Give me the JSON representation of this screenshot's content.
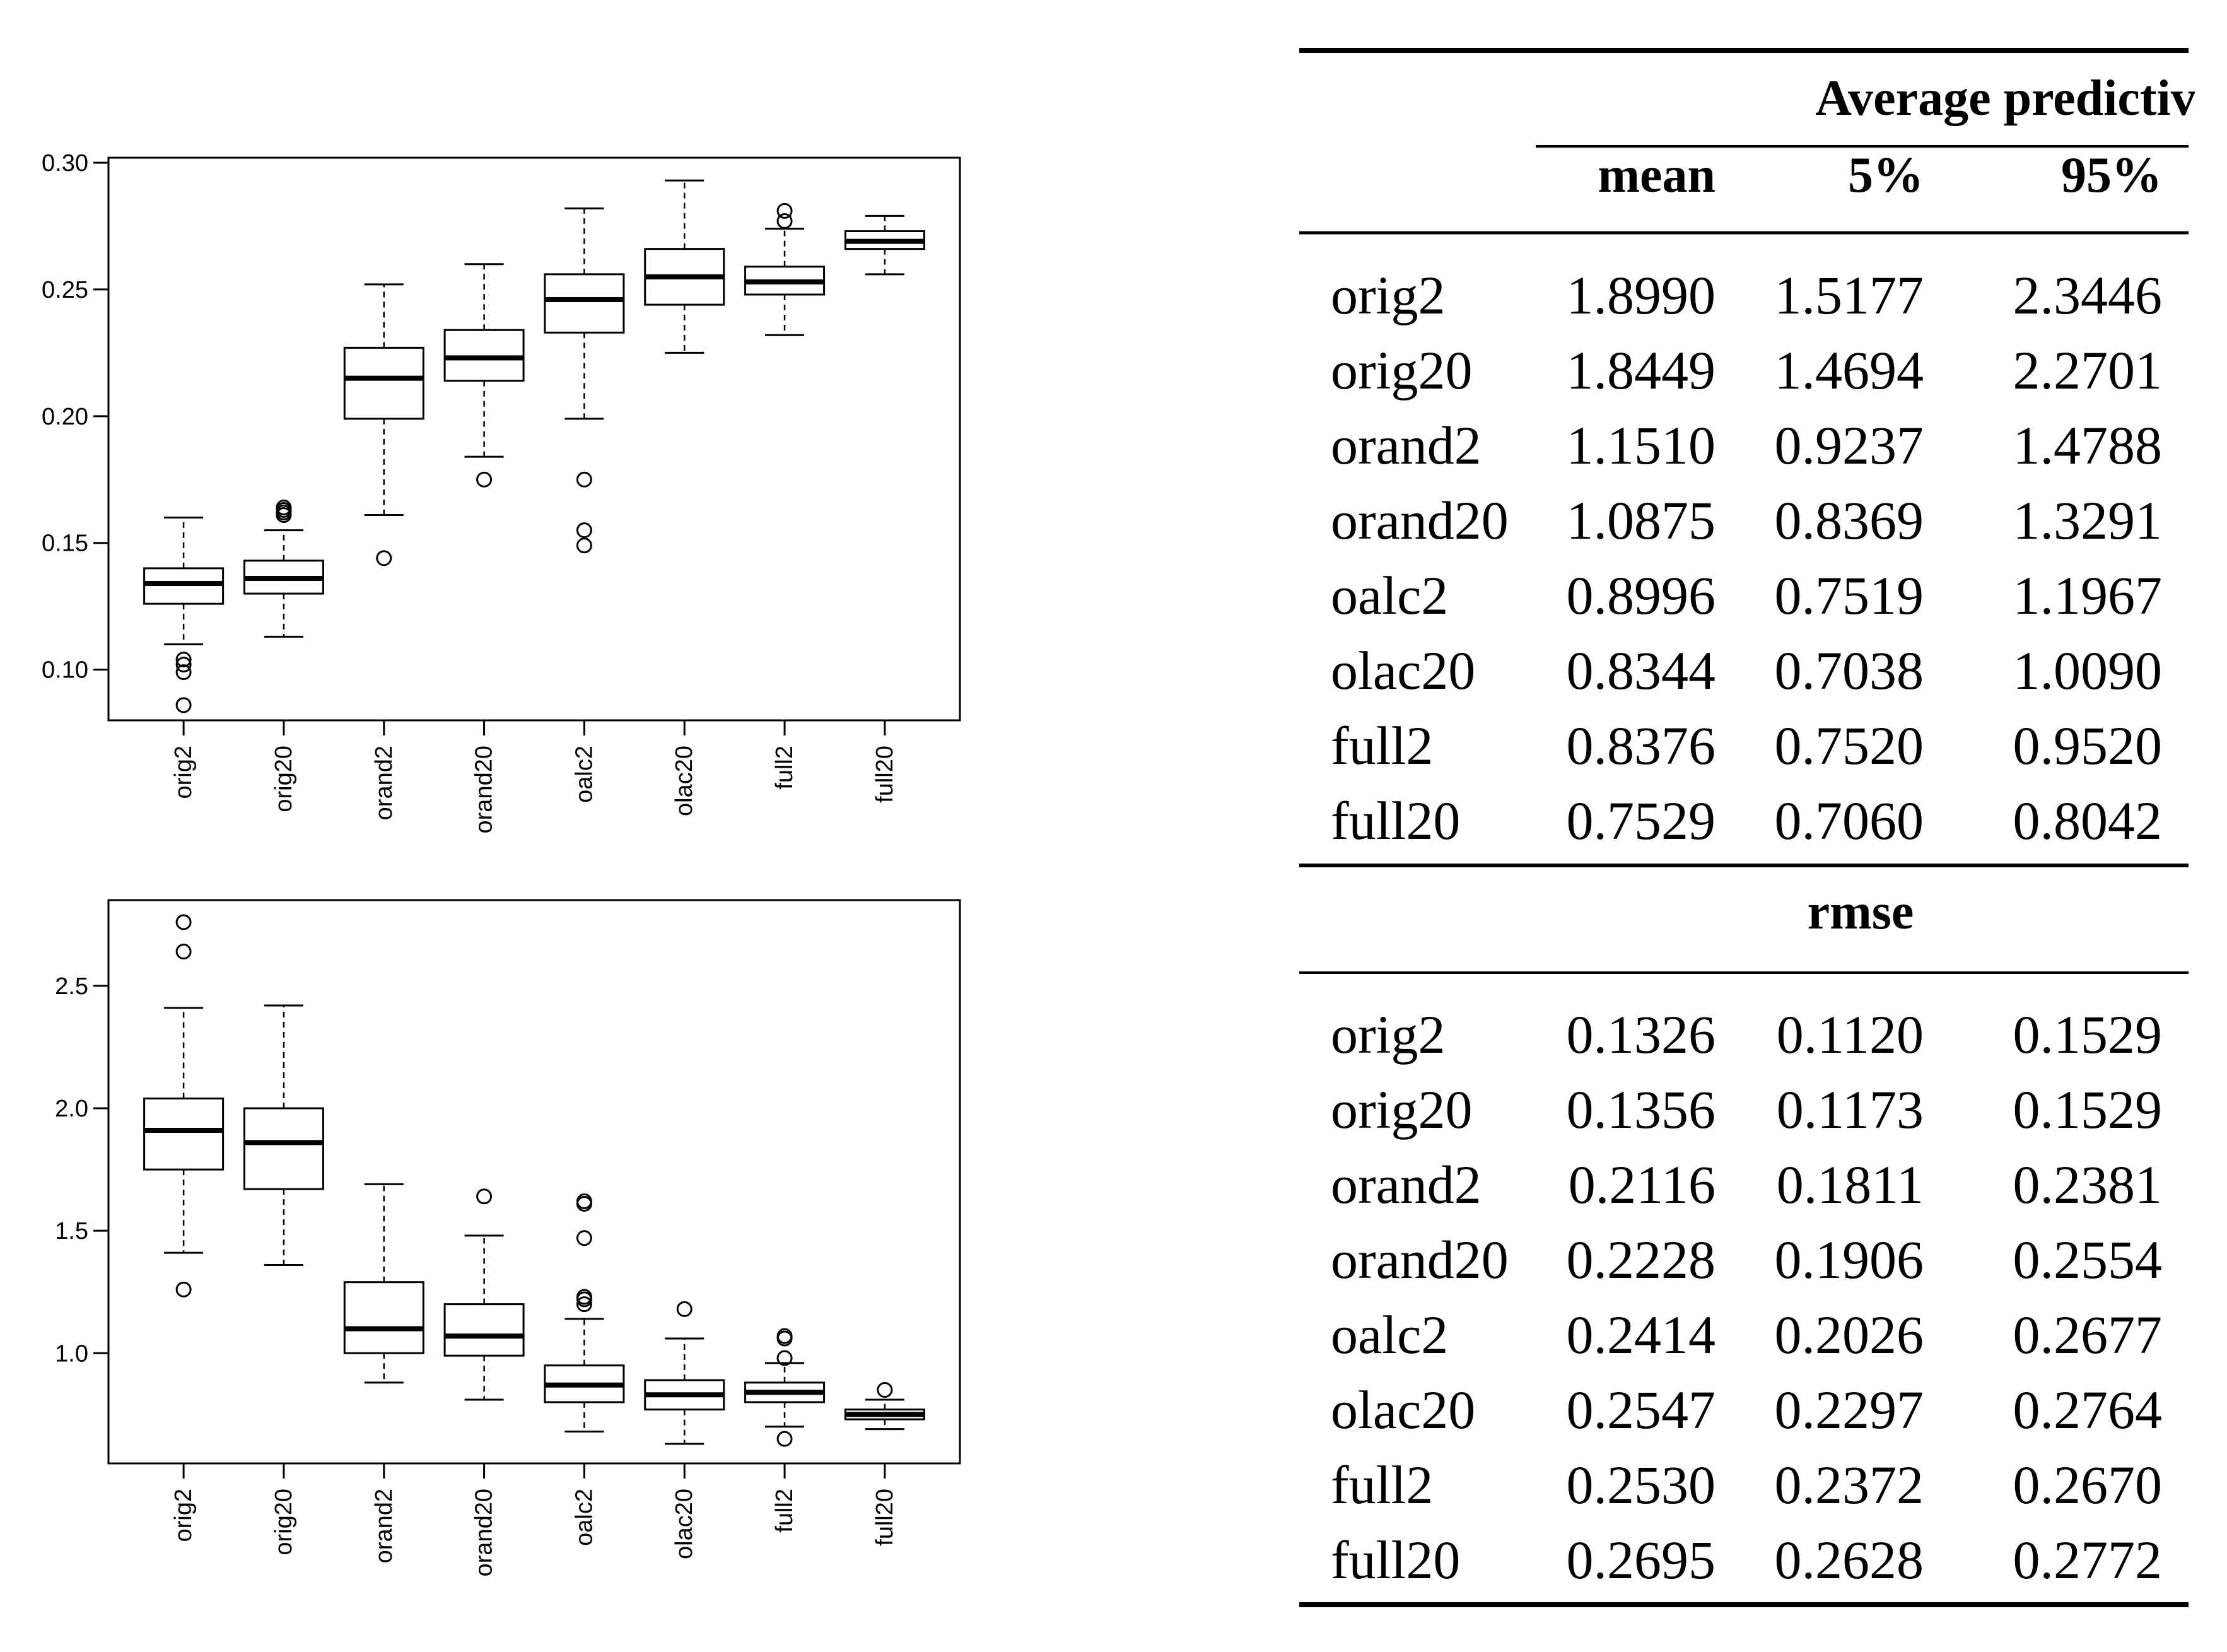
{
  "chart_data": [
    {
      "type": "boxplot",
      "categories": [
        "orig2",
        "orig20",
        "orand2",
        "orand20",
        "oalc2",
        "olac20",
        "full2",
        "full20"
      ],
      "ylim": [
        0.08,
        0.302
      ],
      "yticks": [
        0.1,
        0.15,
        0.2,
        0.25,
        0.3
      ],
      "ytick_labels": [
        "0.10",
        "0.15",
        "0.20",
        "0.25",
        "0.30"
      ],
      "boxes": [
        {
          "whisker_low": 0.11,
          "q1": 0.126,
          "median": 0.134,
          "q3": 0.14,
          "whisker_high": 0.16,
          "outliers": [
            0.104,
            0.102,
            0.099,
            0.086
          ]
        },
        {
          "whisker_low": 0.113,
          "q1": 0.13,
          "median": 0.136,
          "q3": 0.143,
          "whisker_high": 0.155,
          "outliers": [
            0.164,
            0.163,
            0.162,
            0.161
          ]
        },
        {
          "whisker_low": 0.161,
          "q1": 0.199,
          "median": 0.215,
          "q3": 0.227,
          "whisker_high": 0.252,
          "outliers": [
            0.144
          ]
        },
        {
          "whisker_low": 0.184,
          "q1": 0.214,
          "median": 0.223,
          "q3": 0.234,
          "whisker_high": 0.26,
          "outliers": [
            0.175
          ]
        },
        {
          "whisker_low": 0.199,
          "q1": 0.233,
          "median": 0.246,
          "q3": 0.256,
          "whisker_high": 0.282,
          "outliers": [
            0.175,
            0.155,
            0.149
          ]
        },
        {
          "whisker_low": 0.225,
          "q1": 0.244,
          "median": 0.255,
          "q3": 0.266,
          "whisker_high": 0.293,
          "outliers": []
        },
        {
          "whisker_low": 0.232,
          "q1": 0.248,
          "median": 0.253,
          "q3": 0.259,
          "whisker_high": 0.274,
          "outliers": [
            0.281,
            0.277
          ]
        },
        {
          "whisker_low": 0.256,
          "q1": 0.266,
          "median": 0.269,
          "q3": 0.273,
          "whisker_high": 0.279,
          "outliers": []
        }
      ]
    },
    {
      "type": "boxplot",
      "categories": [
        "orig2",
        "orig20",
        "orand2",
        "orand20",
        "oalc2",
        "olac20",
        "full2",
        "full20"
      ],
      "ylim": [
        0.55,
        2.85
      ],
      "yticks": [
        1.0,
        1.5,
        2.0,
        2.5
      ],
      "ytick_labels": [
        "1.0",
        "1.5",
        "2.0",
        "2.5"
      ],
      "boxes": [
        {
          "whisker_low": 1.41,
          "q1": 1.75,
          "median": 1.91,
          "q3": 2.04,
          "whisker_high": 2.41,
          "outliers": [
            1.26,
            2.64,
            2.76
          ]
        },
        {
          "whisker_low": 1.36,
          "q1": 1.67,
          "median": 1.86,
          "q3": 2.0,
          "whisker_high": 2.42,
          "outliers": []
        },
        {
          "whisker_low": 0.88,
          "q1": 1.0,
          "median": 1.1,
          "q3": 1.29,
          "whisker_high": 1.69,
          "outliers": []
        },
        {
          "whisker_low": 0.81,
          "q1": 0.99,
          "median": 1.07,
          "q3": 1.2,
          "whisker_high": 1.48,
          "outliers": [
            1.64
          ]
        },
        {
          "whisker_low": 0.68,
          "q1": 0.8,
          "median": 0.87,
          "q3": 0.95,
          "whisker_high": 1.14,
          "outliers": [
            1.2,
            1.22,
            1.23,
            1.47,
            1.61,
            1.62
          ]
        },
        {
          "whisker_low": 0.63,
          "q1": 0.77,
          "median": 0.83,
          "q3": 0.89,
          "whisker_high": 1.06,
          "outliers": [
            1.18
          ]
        },
        {
          "whisker_low": 0.7,
          "q1": 0.8,
          "median": 0.84,
          "q3": 0.88,
          "whisker_high": 0.96,
          "outliers": [
            0.65,
            0.98,
            1.06,
            1.07
          ]
        },
        {
          "whisker_low": 0.69,
          "q1": 0.73,
          "median": 0.75,
          "q3": 0.77,
          "whisker_high": 0.81,
          "outliers": [
            0.85
          ]
        }
      ]
    }
  ],
  "table": {
    "col_headers": [
      "mean",
      "5%",
      "95%"
    ],
    "sections": [
      {
        "title": "Average predictive density",
        "rows": [
          {
            "label": "orig2",
            "values": [
              "1.8990",
              "1.5177",
              "2.3446"
            ]
          },
          {
            "label": "orig20",
            "values": [
              "1.8449",
              "1.4694",
              "2.2701"
            ]
          },
          {
            "label": "orand2",
            "values": [
              "1.1510",
              "0.9237",
              "1.4788"
            ]
          },
          {
            "label": "orand20",
            "values": [
              "1.0875",
              "0.8369",
              "1.3291"
            ]
          },
          {
            "label": "oalc2",
            "values": [
              "0.8996",
              "0.7519",
              "1.1967"
            ]
          },
          {
            "label": "olac20",
            "values": [
              "0.8344",
              "0.7038",
              "1.0090"
            ]
          },
          {
            "label": "full2",
            "values": [
              "0.8376",
              "0.7520",
              "0.9520"
            ]
          },
          {
            "label": "full20",
            "values": [
              "0.7529",
              "0.7060",
              "0.8042"
            ]
          }
        ]
      },
      {
        "title": "rmse",
        "rows": [
          {
            "label": "orig2",
            "values": [
              "0.1326",
              "0.1120",
              "0.1529"
            ]
          },
          {
            "label": "orig20",
            "values": [
              "0.1356",
              "0.1173",
              "0.1529"
            ]
          },
          {
            "label": "orand2",
            "values": [
              "0.2116",
              "0.1811",
              "0.2381"
            ]
          },
          {
            "label": "orand20",
            "values": [
              "0.2228",
              "0.1906",
              "0.2554"
            ]
          },
          {
            "label": "oalc2",
            "values": [
              "0.2414",
              "0.2026",
              "0.2677"
            ]
          },
          {
            "label": "olac20",
            "values": [
              "0.2547",
              "0.2297",
              "0.2764"
            ]
          },
          {
            "label": "full2",
            "values": [
              "0.2530",
              "0.2372",
              "0.2670"
            ]
          },
          {
            "label": "full20",
            "values": [
              "0.2695",
              "0.2628",
              "0.2772"
            ]
          }
        ]
      }
    ]
  }
}
